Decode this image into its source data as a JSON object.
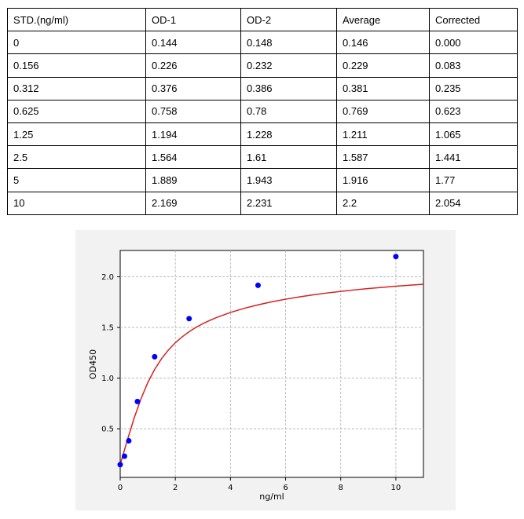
{
  "table": {
    "headers": [
      "STD.(ng/ml)",
      "OD-1",
      "OD-2",
      "Average",
      "Corrected"
    ],
    "rows": [
      [
        "0",
        "0.144",
        "0.148",
        "0.146",
        "0.000"
      ],
      [
        "0.156",
        "0.226",
        "0.232",
        "0.229",
        "0.083"
      ],
      [
        "0.312",
        "0.376",
        "0.386",
        "0.381",
        "0.235"
      ],
      [
        "0.625",
        "0.758",
        "0.78",
        "0.769",
        "0.623"
      ],
      [
        "1.25",
        "1.194",
        "1.228",
        "1.211",
        "1.065"
      ],
      [
        "2.5",
        "1.564",
        "1.61",
        "1.587",
        "1.441"
      ],
      [
        "5",
        "1.889",
        "1.943",
        "1.916",
        "1.77"
      ],
      [
        "10",
        "2.169",
        "2.231",
        "2.2",
        "2.054"
      ]
    ]
  },
  "chart_data": {
    "type": "scatter",
    "title": "",
    "xlabel": "ng/ml",
    "ylabel": "OD450",
    "xlim": [
      0,
      11
    ],
    "ylim": [
      0.02,
      2.26
    ],
    "xticks": [
      0,
      2,
      4,
      6,
      8,
      10
    ],
    "yticks": [
      0.5,
      1.0,
      1.5,
      2.0
    ],
    "xtick_labels": [
      "0",
      "2",
      "4",
      "6",
      "8",
      "10"
    ],
    "ytick_labels": [
      "0.5",
      "1.0",
      "1.5",
      "2.0"
    ],
    "grid": true,
    "points": {
      "color": "#0000ff",
      "x": [
        0,
        0.156,
        0.312,
        0.625,
        1.25,
        2.5,
        5,
        10
      ],
      "y": [
        0.146,
        0.229,
        0.381,
        0.769,
        1.211,
        1.587,
        1.916,
        2.2
      ]
    },
    "fit_curve": {
      "color": "#d62020",
      "x": [
        0,
        0.25,
        0.5,
        0.75,
        1,
        1.25,
        1.5,
        1.75,
        2,
        2.25,
        2.5,
        2.75,
        3,
        3.25,
        3.5,
        4,
        4.5,
        5,
        5.5,
        6,
        6.5,
        7,
        7.5,
        8,
        8.5,
        9,
        9.5,
        10,
        10.5,
        11
      ],
      "y": [
        0.146,
        0.38,
        0.6,
        0.793,
        0.955,
        1.086,
        1.192,
        1.278,
        1.349,
        1.408,
        1.458,
        1.501,
        1.538,
        1.57,
        1.599,
        1.648,
        1.689,
        1.723,
        1.753,
        1.779,
        1.802,
        1.822,
        1.84,
        1.856,
        1.871,
        1.884,
        1.896,
        1.907,
        1.917,
        1.927
      ]
    }
  }
}
